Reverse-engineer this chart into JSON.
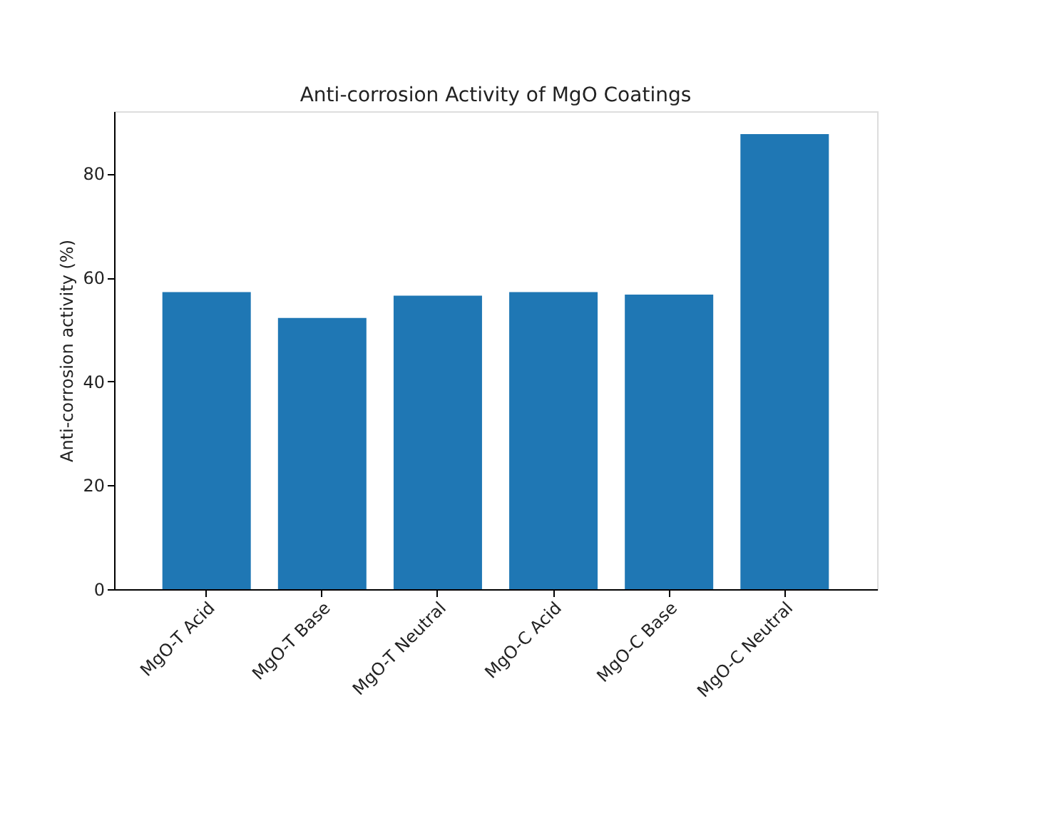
{
  "chart_data": {
    "type": "bar",
    "title": "Anti-corrosion Activity of MgO Coatings",
    "ylabel": "Anti-corrosion activity (%)",
    "categories": [
      "MgO-T Acid",
      "MgO-T Base",
      "MgO-T Neutral",
      "MgO-C Acid",
      "MgO-C Base",
      "MgO-C Neutral"
    ],
    "values": [
      57.2,
      52.2,
      56.5,
      57.2,
      56.7,
      87.6
    ],
    "color": "#1f77b4",
    "ylim": [
      0,
      92
    ],
    "yticks": [
      0,
      20,
      40,
      60,
      80
    ],
    "grid": false
  }
}
